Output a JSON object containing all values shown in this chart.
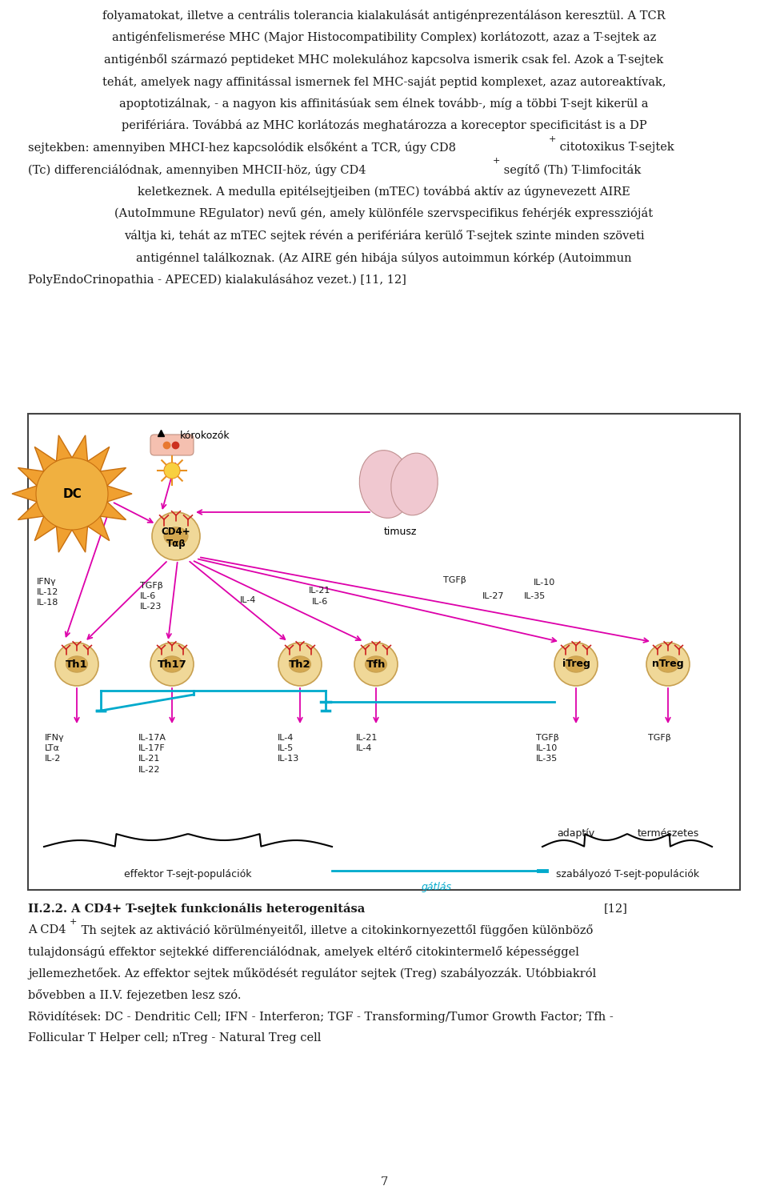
{
  "figure_width": 9.6,
  "figure_height": 15.02,
  "dpi": 100,
  "background_color": "#ffffff",
  "text_color": "#1a1a1a",
  "magenta_color": "#dd00aa",
  "cyan_color": "#00aacc",
  "cell_body_color": "#f0d898",
  "cell_outline_color": "#c8a050",
  "nucleus_color": "#d4a850",
  "receptor_color": "#cc2020",
  "dc_color": "#f0a830",
  "dc_outline": "#c87010",
  "thymus_color": "#f0c8d0",
  "thymus_outline": "#c09090",
  "pathogen_color": "#f0b0a0",
  "top_text_lines": [
    "folyamatokat, illetve a centrális tolerancia kialakulását antigénprezentáláson keresztül. A TCR",
    "antigénfelismerése MHC (Major Histocompatibility Complex) korlátozott, azaz a T-sejtek az",
    "antigénből származó peptideket MHC molekulához kapcsolva ismerik csak fel. Azok a T-sejtek",
    "tehát, amelyek nagy affinitással ismernek fel MHC-saját peptid komplexet, azaz autoreaktívak,",
    "apoptotizálnak, - a nagyon kis affinitásúak sem élnek tovább-, míg a többi T-sejt kikerül a",
    "perifériára. Továbbá az MHC korlátozás meghatározza a koreceptor specificitást is a DP"
  ],
  "line_cd8_pre": "sejtekben: amennyiben MHCI-hez kapcsolódik elsőként a TCR, úgy CD8",
  "line_cd8_post": " citotoxikus T-sejtek",
  "line_cd4_pre": "(Tc) differenciálódnak, amennyiben MHCII-höz, úgy CD4",
  "line_cd4_post": " segítő (Th) T-limfociták",
  "mid_text_lines": [
    "keletkeznek. A medulla epitélsejtjeiben (mTEC) továbbá aktív az úgynevezett AIRE",
    "(AutoImmune REgulator) nevű gén, amely különféle szervspecifikus fehérjék expresszióját",
    "váltja ki, tehát az mTEC sejtek révén a perifériára kerülő T-sejtek szinte minden szöveti",
    "antigénnel találkoznak. (Az AIRE gén hibája súlyos autoimmun kórkép (Autoimmun",
    "PolyEndoCrinopathia - APECED) kialakulásához vezet.) [11, 12]"
  ],
  "section_title_bold": "II.2.2. A CD4+ T-sejtek funkcionális heterogenitása ",
  "section_title_ref": "[12]",
  "bottom_lines": [
    "tulajdonságú effektor sejtekké differenciálódnak, amelyek eltérő citokintermelő képességgel",
    "jellemezhetőek. Az effektor sejtek működését regulátor sejtek (Treg) szabályozzák. Utóbbiakról",
    "bővebben a II.V. fejezetben lesz szó.",
    "Rövidítések: DC - Dendritic Cell; IFN - Interferon; TGF - Transforming/Tumor Growth Factor; Tfh -",
    "Follicular T Helper cell; nTreg - Natural Treg cell"
  ],
  "bottom_cd4_pre": "A CD4",
  "bottom_cd4_post": " Th sejtek az aktiváció körülményeitől, illetve a citokinkornyezettől függően különböző",
  "page_number": "7"
}
